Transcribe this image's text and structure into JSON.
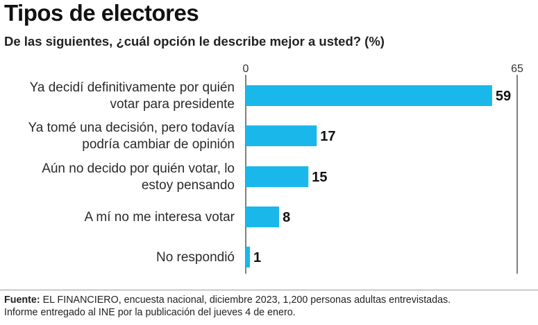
{
  "title": "Tipos de electores",
  "subtitle": "De las siguientes, ¿cuál opción le describe mejor a usted?  (%)",
  "chart_data": {
    "type": "bar",
    "orientation": "horizontal",
    "categories": [
      [
        "Ya decidí definitivamente por quién",
        "votar para presidente"
      ],
      [
        "Ya tomé una decisión, pero todavía",
        "podría cambiar de opinión"
      ],
      [
        "Aún no decido por quién votar, lo",
        "estoy pensando"
      ],
      [
        "A mí no me interesa votar"
      ],
      [
        "No respondió"
      ]
    ],
    "values": [
      59,
      17,
      15,
      8,
      1
    ],
    "xlim": [
      0,
      65
    ],
    "ticks": [
      "0",
      "65"
    ],
    "bar_color": "#1ab8ea",
    "axis_color": "#555555",
    "grid": false
  },
  "source": {
    "label": "Fuente:",
    "line1": " EL FINANCIERO, encuesta nacional, diciembre 2023, 1,200 personas adultas entrevistadas.",
    "line2": "Informe entregado al INE por la publicación del jueves 4 de enero."
  }
}
